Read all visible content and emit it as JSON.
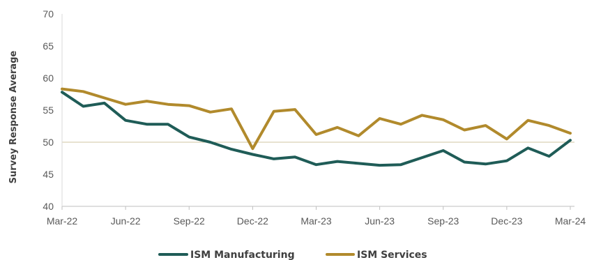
{
  "chart_data": {
    "type": "line",
    "ylabel": "Survey Response Average",
    "ylim": [
      40,
      70
    ],
    "yticks": [
      40,
      45,
      50,
      55,
      60,
      65,
      70
    ],
    "xtick_labels": [
      "Mar-22",
      "Jun-22",
      "Sep-22",
      "Dec-22",
      "Mar-23",
      "Jun-23",
      "Sep-23",
      "Dec-23",
      "Mar-24"
    ],
    "x": [
      "Mar-22",
      "Apr-22",
      "May-22",
      "Jun-22",
      "Jul-22",
      "Aug-22",
      "Sep-22",
      "Oct-22",
      "Nov-22",
      "Dec-22",
      "Jan-23",
      "Feb-23",
      "Mar-23",
      "Apr-23",
      "May-23",
      "Jun-23",
      "Jul-23",
      "Aug-23",
      "Sep-23",
      "Oct-23",
      "Nov-23",
      "Dec-23",
      "Jan-24",
      "Feb-24",
      "Mar-24"
    ],
    "reference_line": 50,
    "legend_position": "bottom",
    "grid": false,
    "series": [
      {
        "name": "ISM Manufacturing",
        "color": "#1f5c57",
        "values": [
          57.8,
          55.6,
          56.1,
          53.4,
          52.8,
          52.8,
          50.8,
          50.0,
          48.9,
          48.1,
          47.4,
          47.7,
          46.5,
          47.0,
          46.7,
          46.4,
          46.5,
          47.6,
          48.7,
          46.9,
          46.6,
          47.1,
          49.1,
          47.8,
          50.3
        ]
      },
      {
        "name": "ISM Services",
        "color": "#b18a2c",
        "values": [
          58.3,
          57.9,
          56.9,
          55.9,
          56.4,
          55.9,
          55.7,
          54.7,
          55.2,
          49.0,
          54.8,
          55.1,
          51.2,
          52.3,
          51.0,
          53.7,
          52.8,
          54.2,
          53.5,
          51.9,
          52.6,
          50.5,
          53.4,
          52.6,
          51.4
        ]
      }
    ]
  }
}
